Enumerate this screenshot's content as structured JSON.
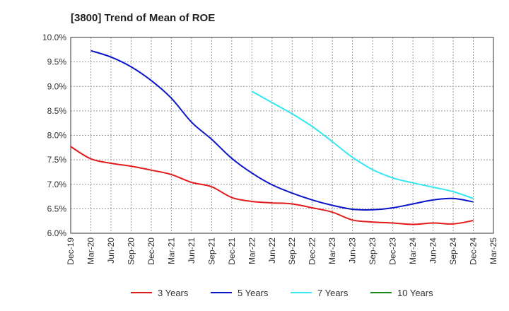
{
  "chart_data": {
    "type": "line",
    "title": "[3800]  Trend of Mean of ROE",
    "xlabel": "",
    "ylabel": "",
    "ylim": [
      6.0,
      10.0
    ],
    "yticks": [
      6.0,
      6.5,
      7.0,
      7.5,
      8.0,
      8.5,
      9.0,
      9.5,
      10.0
    ],
    "ytick_labels": [
      "6.0%",
      "6.5%",
      "7.0%",
      "7.5%",
      "8.0%",
      "8.5%",
      "9.0%",
      "9.5%",
      "10.0%"
    ],
    "x": [
      "Dec-19",
      "Mar-20",
      "Jun-20",
      "Sep-20",
      "Dec-20",
      "Mar-21",
      "Jun-21",
      "Sep-21",
      "Dec-21",
      "Mar-22",
      "Jun-22",
      "Sep-22",
      "Dec-22",
      "Mar-23",
      "Jun-23",
      "Sep-23",
      "Dec-23",
      "Mar-24",
      "Jun-24",
      "Sep-24",
      "Dec-24",
      "Mar-25"
    ],
    "grid": true,
    "legend_position": "bottom",
    "series": [
      {
        "name": "3 Years",
        "color": "#e31a1c",
        "values": [
          7.77,
          7.52,
          7.43,
          7.37,
          7.29,
          7.2,
          7.04,
          6.95,
          6.73,
          6.65,
          6.62,
          6.6,
          6.52,
          6.43,
          6.27,
          6.23,
          6.21,
          6.18,
          6.21,
          6.19,
          6.26,
          null
        ]
      },
      {
        "name": "5 Years",
        "color": "#0a14c8",
        "values": [
          null,
          9.73,
          9.6,
          9.4,
          9.12,
          8.76,
          8.27,
          7.92,
          7.53,
          7.23,
          6.99,
          6.82,
          6.68,
          6.57,
          6.49,
          6.48,
          6.52,
          6.6,
          6.68,
          6.71,
          6.64,
          null
        ]
      },
      {
        "name": "7 Years",
        "color": "#33e8f0",
        "values": [
          null,
          null,
          null,
          null,
          null,
          null,
          null,
          null,
          null,
          8.9,
          8.67,
          8.44,
          8.18,
          7.87,
          7.55,
          7.3,
          7.13,
          7.03,
          6.94,
          6.85,
          6.71,
          null
        ]
      },
      {
        "name": "10 Years",
        "color": "#1a8a1a",
        "values": [
          null,
          null,
          null,
          null,
          null,
          null,
          null,
          null,
          null,
          null,
          null,
          null,
          null,
          null,
          null,
          null,
          null,
          null,
          null,
          null,
          null,
          null
        ]
      }
    ]
  }
}
